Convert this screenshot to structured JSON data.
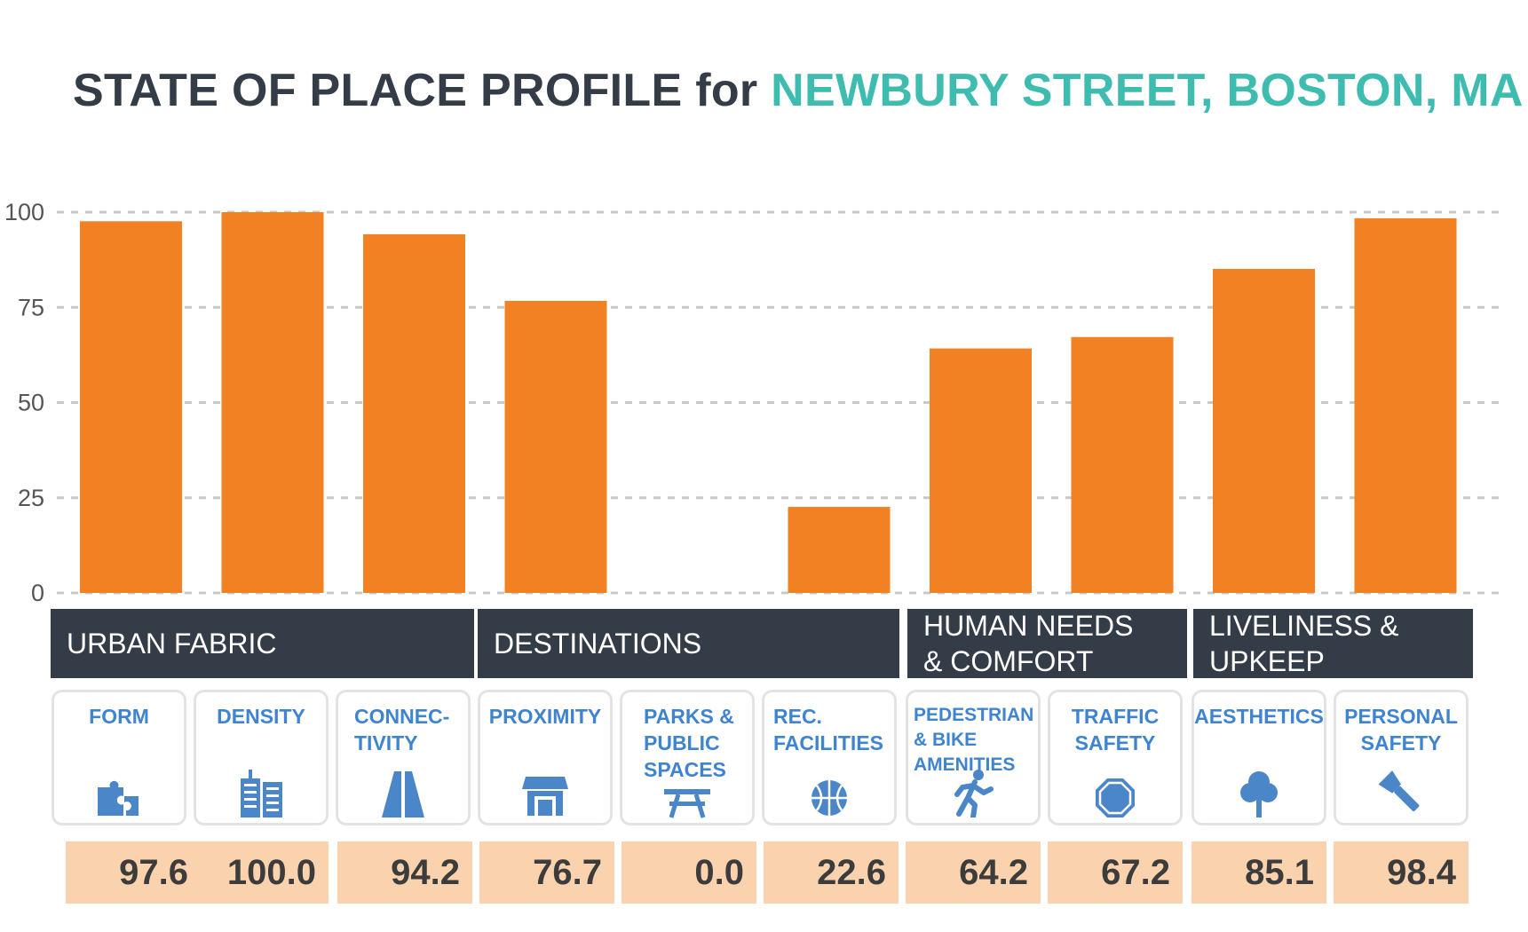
{
  "title": {
    "prefix": "STATE OF PLACE PROFILE for ",
    "place": "NEWBURY STREET, BOSTON, MA"
  },
  "colors": {
    "bar": "#f28123",
    "title": "#333c47",
    "accent": "#3fbcb0",
    "category_bg": "#333c47",
    "metric_label": "#3f84d1",
    "score_bg": "#fbd2ae",
    "grid": "#c8c8c8"
  },
  "categories": [
    {
      "label": "URBAN FABRIC"
    },
    {
      "label": "DESTINATIONS"
    },
    {
      "label": "HUMAN NEEDS\n& COMFORT"
    },
    {
      "label": "LIVELINESS &\nUPKEEP"
    }
  ],
  "metrics": [
    {
      "label": "FORM",
      "icon": "puzzle-icon",
      "score": "97.6"
    },
    {
      "label": "DENSITY",
      "icon": "buildings-icon",
      "score": "100.0"
    },
    {
      "label": "CONNEC-\nTIVITY",
      "icon": "road-icon",
      "score": "94.2"
    },
    {
      "label": "PROXIMITY",
      "icon": "storefront-icon",
      "score": "76.7"
    },
    {
      "label": "PARKS &\nPUBLIC\nSPACES",
      "icon": "picnic-table-icon",
      "score": "0.0"
    },
    {
      "label": "REC.\nFACILITIES",
      "icon": "basketball-icon",
      "score": "22.6"
    },
    {
      "label": "PEDESTRIAN\n& BIKE\nAMENITIES",
      "icon": "runner-icon",
      "score": "64.2"
    },
    {
      "label": "TRAFFIC\nSAFETY",
      "icon": "stop-sign-icon",
      "score": "67.2"
    },
    {
      "label": "AESTHETICS",
      "icon": "tree-icon",
      "score": "85.1"
    },
    {
      "label": "PERSONAL\nSAFETY",
      "icon": "flashlight-icon",
      "score": "98.4"
    }
  ],
  "chart_data": {
    "type": "bar",
    "categories": [
      "FORM",
      "DENSITY",
      "CONNEC-TIVITY",
      "PROXIMITY",
      "PARKS & PUBLIC SPACES",
      "REC. FACILITIES",
      "PEDESTRIAN & BIKE AMENITIES",
      "TRAFFIC SAFETY",
      "AESTHETICS",
      "PERSONAL SAFETY"
    ],
    "values": [
      97.6,
      100.0,
      94.2,
      76.7,
      0.0,
      22.6,
      64.2,
      67.2,
      85.1,
      98.4
    ],
    "ylim": [
      0,
      100
    ],
    "yticks": [
      "0",
      "25",
      "50",
      "75",
      "100"
    ],
    "grid": true,
    "xlabel": "",
    "ylabel": ""
  }
}
